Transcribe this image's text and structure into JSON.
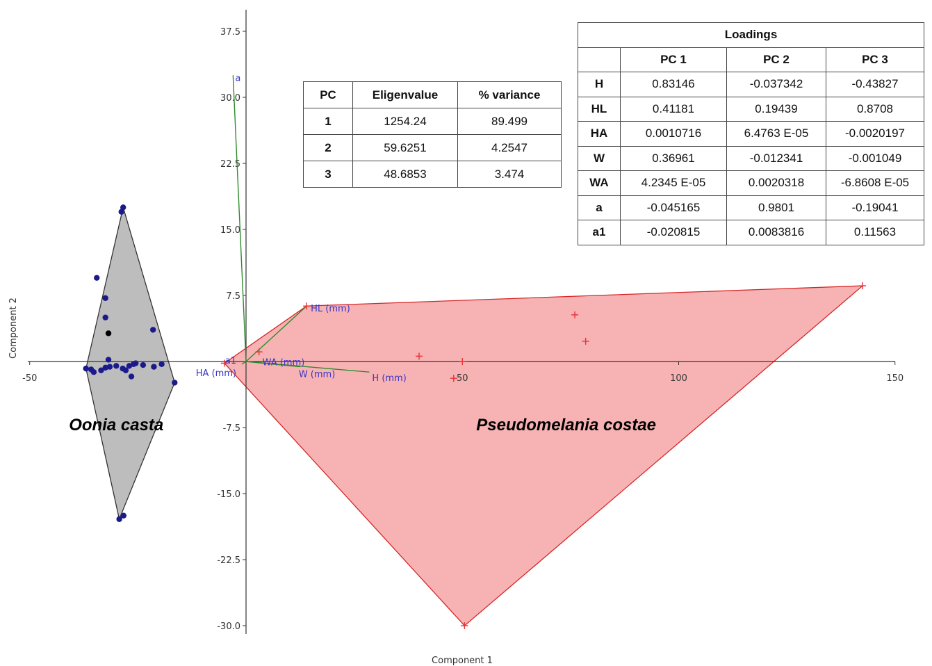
{
  "chart_data": {
    "type": "scatter",
    "xlabel": "Component 1",
    "ylabel": "Component 2",
    "xlim": [
      -50,
      150
    ],
    "ylim": [
      -30,
      37.5
    ],
    "xticks": [
      -50,
      50,
      100,
      150
    ],
    "xtick_labels": [
      "-50",
      "50",
      "100",
      "150"
    ],
    "yticks": [
      37.5,
      30.0,
      22.5,
      15.0,
      7.5,
      0,
      -7.5,
      -15.0,
      -22.5,
      -30.0
    ],
    "ytick_labels": [
      "37.5",
      "30.0",
      "22.5",
      "15.0",
      "7.5",
      "",
      "-7.5",
      "-15.0",
      "-22.5",
      "-30.0"
    ],
    "series": [
      {
        "label": "Oonia casta",
        "color": "#1a1a8c",
        "marker": "dot",
        "hull_color": "#bdbdbd",
        "points": [
          [
            -28.4,
            17.5
          ],
          [
            -28.8,
            17.0
          ],
          [
            -34.5,
            9.5
          ],
          [
            -32.5,
            7.2
          ],
          [
            -32.5,
            5.0
          ],
          [
            -21.5,
            3.6
          ],
          [
            -31.8,
            0.2
          ],
          [
            -37.0,
            -0.8
          ],
          [
            -35.8,
            -0.9
          ],
          [
            -35.2,
            -1.2
          ],
          [
            -33.5,
            -1.0
          ],
          [
            -32.5,
            -0.7
          ],
          [
            -31.5,
            -0.6
          ],
          [
            -30.0,
            -0.5
          ],
          [
            -28.5,
            -0.8
          ],
          [
            -27.8,
            -1.0
          ],
          [
            -27.0,
            -0.5
          ],
          [
            -26.0,
            -0.3
          ],
          [
            -25.5,
            -0.2
          ],
          [
            -23.8,
            -0.4
          ],
          [
            -21.3,
            -0.6
          ],
          [
            -19.5,
            -0.3
          ],
          [
            -26.5,
            -1.7
          ],
          [
            -16.5,
            -2.4
          ],
          [
            -29.3,
            -17.9
          ],
          [
            -28.3,
            -17.5
          ]
        ],
        "special_points": [
          [
            -31.8,
            3.2
          ]
        ],
        "hull": [
          [
            -28.4,
            17.5
          ],
          [
            -16.5,
            -2.4
          ],
          [
            -29.3,
            -17.9
          ],
          [
            -37.0,
            -0.8
          ]
        ]
      },
      {
        "label": "Pseudomelania costae",
        "color": "#e8383c",
        "marker": "plus",
        "hull_color": "#f7b3b3",
        "points": [
          [
            -5.0,
            -0.2
          ],
          [
            3.0,
            1.1
          ],
          [
            14.0,
            6.3
          ],
          [
            40.0,
            0.6
          ],
          [
            50.0,
            0.0
          ],
          [
            48.0,
            -1.9
          ],
          [
            50.5,
            -30.0
          ],
          [
            76.0,
            5.3
          ],
          [
            78.5,
            2.3
          ],
          [
            142.5,
            8.6
          ]
        ],
        "hull": [
          [
            -5.0,
            -0.2
          ],
          [
            14.0,
            6.3
          ],
          [
            142.5,
            8.6
          ],
          [
            50.5,
            -30.0
          ]
        ]
      }
    ],
    "biplot_vectors": [
      {
        "name": "a",
        "x": -3.0,
        "y": 32.5
      },
      {
        "name": "HL (mm)",
        "x": 14.0,
        "y": 6.3
      },
      {
        "name": "H (mm)",
        "x": 28.5,
        "y": -1.2
      },
      {
        "name": "W (mm)",
        "x": 12.5,
        "y": -0.6
      },
      {
        "name": "WA (mm)",
        "x": 3.0,
        "y": -0.1
      },
      {
        "name": "HA (mm)",
        "x": -1.0,
        "y": -0.3
      },
      {
        "name": "a1",
        "x": -0.5,
        "y": 0.0
      }
    ],
    "vector_color": "#2e8b2e",
    "annotations": [
      {
        "text": "Oonia casta",
        "x": -30.0,
        "y": -7.8
      },
      {
        "text": "Pseudomelania costae",
        "x": 74.0,
        "y": -7.8
      }
    ]
  },
  "eigen_table": {
    "headers": [
      "PC",
      "Eligenvalue",
      "% variance"
    ],
    "rows": [
      [
        "1",
        "1254.24",
        "89.499"
      ],
      [
        "2",
        "59.6251",
        "4.2547"
      ],
      [
        "3",
        "48.6853",
        "3.474"
      ]
    ]
  },
  "loadings_table": {
    "title": "Loadings",
    "headers": [
      "",
      "PC 1",
      "PC 2",
      "PC 3"
    ],
    "rows": [
      [
        "H",
        "0.83146",
        "-0.037342",
        "-0.43827"
      ],
      [
        "HL",
        "0.41181",
        "0.19439",
        "0.8708"
      ],
      [
        "HA",
        "0.0010716",
        "6.4763 E-05",
        "-0.0020197"
      ],
      [
        "W",
        "0.36961",
        "-0.012341",
        "-0.001049"
      ],
      [
        "WA",
        "4.2345 E-05",
        "0.0020318",
        "-6.8608 E-05"
      ],
      [
        "a",
        "-0.045165",
        "0.9801",
        "-0.19041"
      ],
      [
        "a1",
        "-0.020815",
        "0.0083816",
        "0.11563"
      ]
    ]
  }
}
